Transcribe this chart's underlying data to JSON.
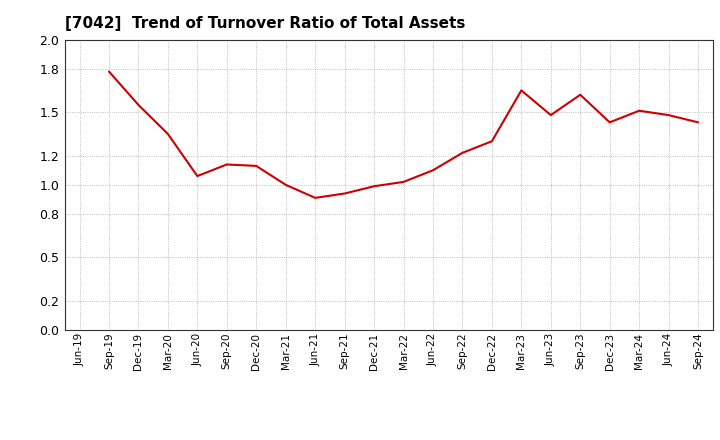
{
  "title": "[7042]  Trend of Turnover Ratio of Total Assets",
  "title_fontsize": 11,
  "line_color": "#cc0000",
  "line_width": 1.5,
  "background_color": "#ffffff",
  "grid_color": "#aaaaaa",
  "ylim": [
    0.0,
    2.0
  ],
  "yticks": [
    0.0,
    0.2,
    0.5,
    0.8,
    1.0,
    1.2,
    1.5,
    1.8,
    2.0
  ],
  "values": [
    null,
    1.78,
    1.55,
    1.35,
    1.06,
    1.14,
    1.13,
    1.0,
    0.91,
    0.94,
    0.99,
    1.02,
    1.1,
    1.22,
    1.3,
    1.65,
    1.48,
    1.62,
    1.43,
    1.51,
    1.48,
    1.43
  ],
  "xtick_labels": [
    "Jun-19",
    "Sep-19",
    "Dec-19",
    "Mar-20",
    "Jun-20",
    "Sep-20",
    "Dec-20",
    "Mar-21",
    "Jun-21",
    "Sep-21",
    "Dec-21",
    "Mar-22",
    "Jun-22",
    "Sep-22",
    "Dec-22",
    "Mar-23",
    "Jun-23",
    "Sep-23",
    "Dec-23",
    "Mar-24",
    "Jun-24",
    "Sep-24"
  ]
}
